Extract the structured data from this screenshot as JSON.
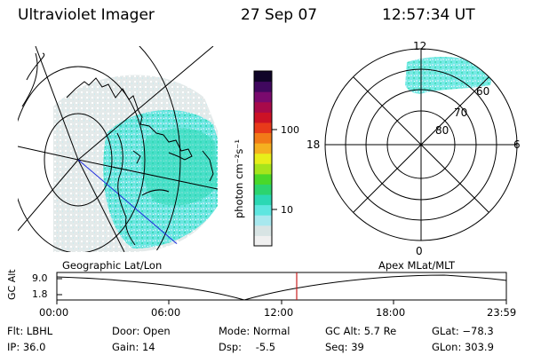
{
  "header": {
    "instrument": "Ultraviolet Imager",
    "date": "27 Sep 07",
    "time": "12:57:34 UT"
  },
  "colorbar": {
    "unit_label": "photon cm⁻²s⁻¹",
    "ticks": [
      "100",
      "10"
    ],
    "colors": [
      "#f0f0f0",
      "#d8e4e4",
      "#a8e8ee",
      "#5ee6e0",
      "#2bd8b4",
      "#2cd46e",
      "#49d82a",
      "#a6e41c",
      "#e8ee1a",
      "#f5b020",
      "#f27a18",
      "#e83a1a",
      "#cc1226",
      "#a80a4a",
      "#7a0a6e",
      "#40085e",
      "#100428"
    ]
  },
  "geo_map": {
    "label": "Geographic Lat/Lon"
  },
  "polar_plot": {
    "label": "Apex MLat/MLT",
    "mlt_labels": {
      "top": "12",
      "left": "18",
      "right": "6",
      "bottom": "0"
    },
    "mlat_labels": [
      "60",
      "70",
      "80"
    ]
  },
  "timeline": {
    "y_axis_label": "GC Alt",
    "y_ticks": [
      "9.0",
      "1.8"
    ],
    "x_ticks": [
      "00:00",
      "06:00",
      "12:00",
      "18:00",
      "23:59"
    ],
    "current_time_marker_color": "#c81e1e"
  },
  "status": {
    "flt": {
      "label": "Flt:",
      "value": "LBHL"
    },
    "ip": {
      "label": "IP:",
      "value": "36.0"
    },
    "door": {
      "label": "Door:",
      "value": "Open"
    },
    "gain": {
      "label": "Gain:",
      "value": "14"
    },
    "mode": {
      "label": "Mode:",
      "value": "Normal"
    },
    "dsp": {
      "label": "Dsp:",
      "value": "-5.5"
    },
    "gc_alt": {
      "label": "GC Alt:",
      "value": "5.7 Re"
    },
    "seq": {
      "label": "Seq:",
      "value": "39"
    },
    "glat": {
      "label": "GLat:",
      "value": "−78.3"
    },
    "glon": {
      "label": "GLon:",
      "value": "303.9"
    }
  }
}
